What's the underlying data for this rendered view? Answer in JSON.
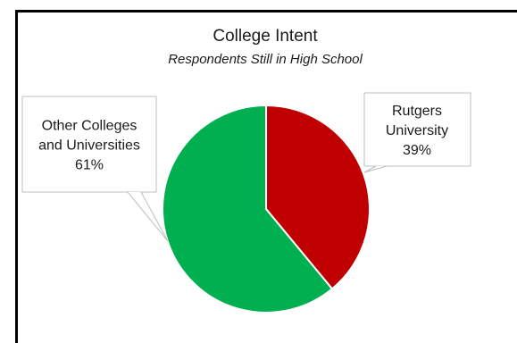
{
  "chart_data": {
    "type": "pie",
    "title": "College Intent",
    "subtitle": "Respondents Still in High School",
    "slices": [
      {
        "label_lines": [
          "Rutgers",
          "University"
        ],
        "value": 39,
        "value_label": "39%",
        "color": "#c00000"
      },
      {
        "label_lines": [
          "Other Colleges",
          "and Universities"
        ],
        "value": 61,
        "value_label": "61%",
        "color": "#00b050"
      }
    ],
    "start_angle": "12 o'clock",
    "direction": "clockwise",
    "legend": "none",
    "data_labels": "callouts"
  }
}
